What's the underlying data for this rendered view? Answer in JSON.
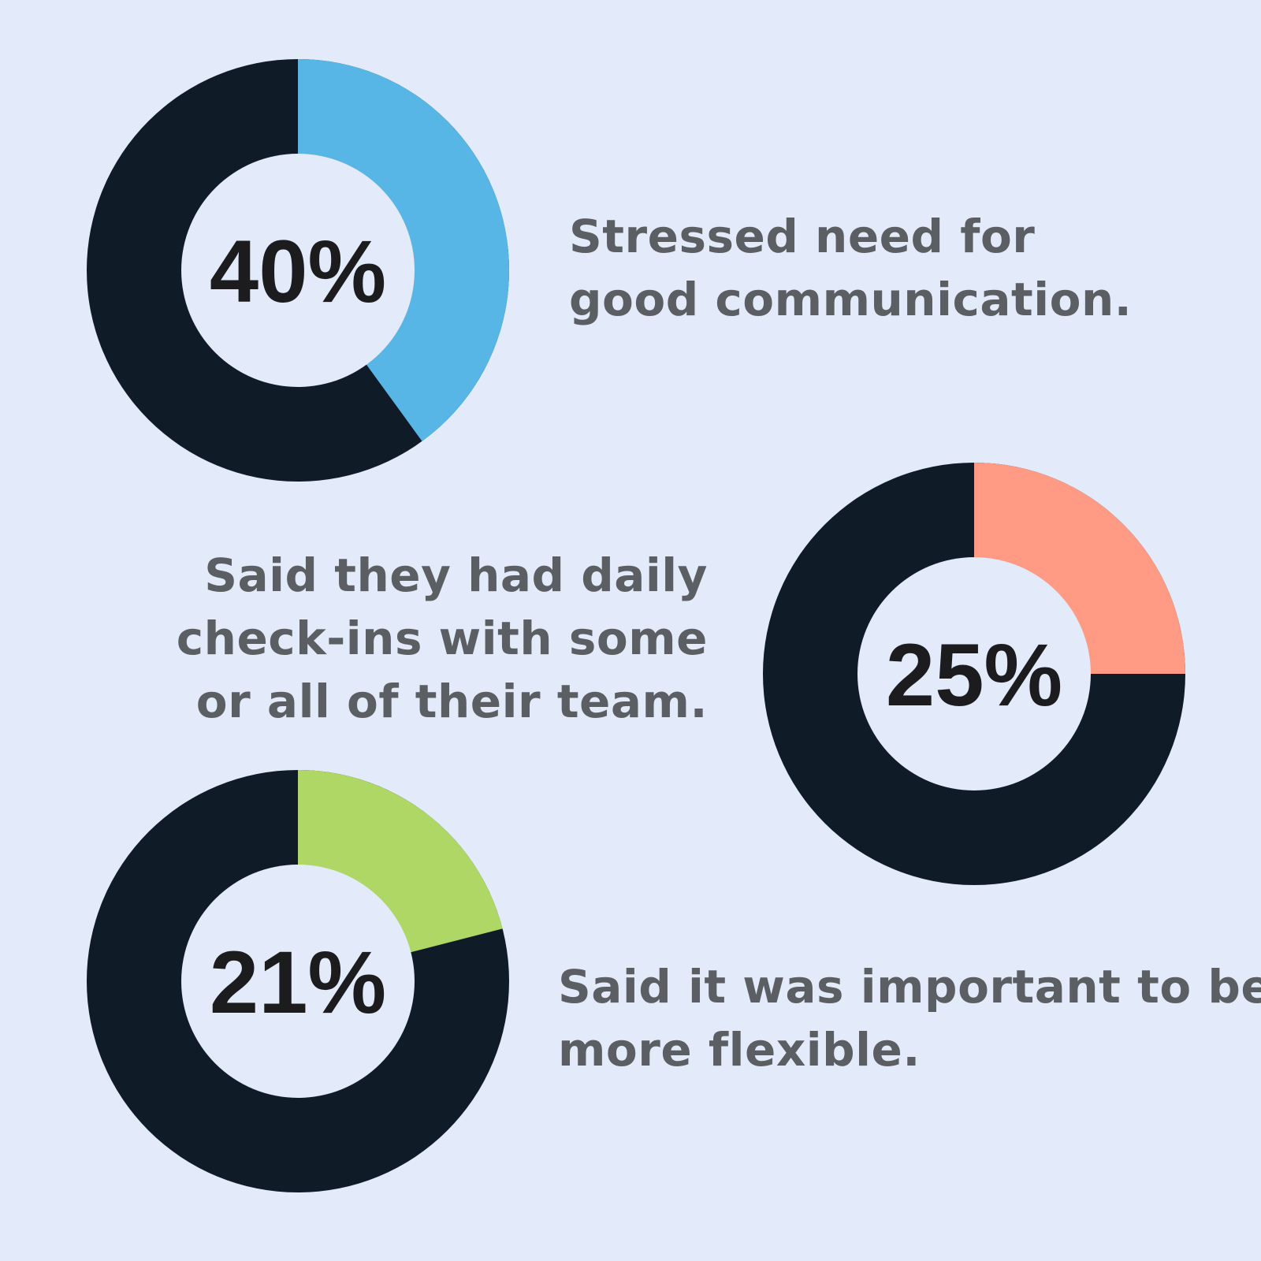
{
  "colors": {
    "background": "#e3eaf9",
    "remainder": "#0f1b27",
    "inner": "#e3eaf9",
    "text": "#5b5f63",
    "label": "#1c1c1f"
  },
  "chart_data": [
    {
      "type": "pie",
      "variant": "donut",
      "value": 40,
      "unit": "%",
      "label": "40%",
      "highlight_color": "#58b6e6",
      "caption_lines": [
        "Stressed need for",
        "good communication."
      ]
    },
    {
      "type": "pie",
      "variant": "donut",
      "value": 25,
      "unit": "%",
      "label": "25%",
      "highlight_color": "#ff9b84",
      "caption_lines": [
        "Said they had daily",
        "check-ins with some",
        "or all of their team."
      ]
    },
    {
      "type": "pie",
      "variant": "donut",
      "value": 21,
      "unit": "%",
      "label": "21%",
      "highlight_color": "#aed766",
      "caption_lines": [
        "Said it was important to be",
        "more flexible."
      ]
    }
  ]
}
